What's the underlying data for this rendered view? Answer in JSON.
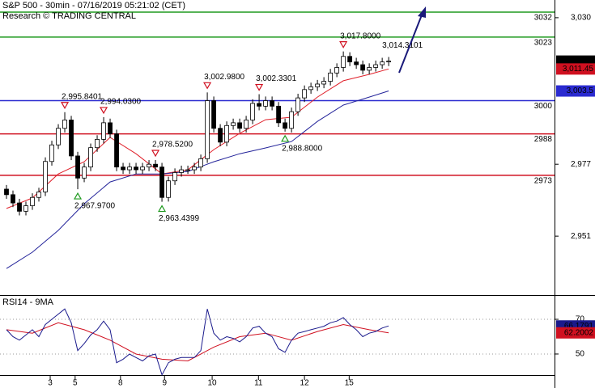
{
  "chart_data": {
    "type": "candlestick",
    "title": "S&P 500 - 30min - 07/16/2019 05:21:02 (CET)",
    "subtitle": "Research © TRADING CENTRAL",
    "x": [
      0,
      1,
      2,
      3,
      4,
      5,
      6,
      7,
      8,
      9,
      10,
      11,
      12,
      13,
      14,
      15,
      16,
      17,
      18,
      19,
      20,
      21,
      22,
      23,
      24,
      25,
      26,
      27,
      28,
      29,
      30,
      31,
      32,
      33,
      34,
      35,
      36,
      37,
      38,
      39,
      40,
      41,
      42,
      43,
      44,
      45,
      46,
      47,
      48,
      49,
      50,
      51,
      52,
      53,
      54,
      55,
      56,
      57,
      58,
      59
    ],
    "open": [
      2968,
      2966,
      2963,
      2960,
      2962,
      2965,
      2967,
      2978,
      2984,
      2990,
      2993,
      2980,
      2972,
      2976,
      2983,
      2986,
      2992,
      2988,
      2976,
      2975,
      2976,
      2975,
      2976,
      2977,
      2976,
      2965,
      2971,
      2974,
      2975,
      2975,
      2976,
      2979,
      3000,
      2990,
      2985,
      2991,
      2992,
      2990,
      2993,
      2999,
      2998,
      3000,
      2998,
      2992,
      2990,
      2996,
      3001,
      3004,
      3005,
      3006,
      3007,
      3010,
      3012,
      3016,
      3014,
      3013,
      3011,
      3012,
      3013,
      3014
    ],
    "high": [
      2969.5,
      2967.5,
      2964.5,
      2963.5,
      2966.5,
      2968.5,
      2979.5,
      2985.5,
      2991.5,
      2995.84,
      2994.5,
      2981.5,
      2977.5,
      2984.5,
      2987.5,
      2994.03,
      2993.5,
      2989.5,
      2977.5,
      2977.5,
      2977.5,
      2977.5,
      2978.5,
      2978.52,
      2977.5,
      2972.5,
      2975.5,
      2976.5,
      2976.5,
      2977.5,
      2980.5,
      3002.98,
      3001.5,
      2991.5,
      2992.5,
      2993.5,
      2993.5,
      2994.5,
      3000.5,
      3002.33,
      3001.5,
      3001.5,
      2999.5,
      2993.5,
      2997.5,
      3002.5,
      3005.5,
      3006.5,
      3007.5,
      3008.5,
      3011.5,
      3013.5,
      3017.8,
      3017.5,
      3015.5,
      3014.5,
      3013.5,
      3014.5,
      3015.5,
      3015.8
    ],
    "low": [
      2964.5,
      2961.5,
      2958.5,
      2958.5,
      2960.5,
      2963.5,
      2965.5,
      2976.5,
      2982.5,
      2988.5,
      2978.5,
      2967.97,
      2970.5,
      2974.5,
      2981.5,
      2984.5,
      2986.5,
      2974.5,
      2973.5,
      2973.5,
      2973.5,
      2973.5,
      2974.5,
      2974.5,
      2963.44,
      2963.5,
      2969.5,
      2972.5,
      2973.5,
      2973.5,
      2974.5,
      2977.5,
      2988.5,
      2983.5,
      2983.5,
      2989.5,
      2988.5,
      2988.5,
      2991.5,
      2996.5,
      2996.5,
      2996.5,
      2990.5,
      2988.8,
      2988.5,
      2994.5,
      2999.5,
      3002.5,
      3003.5,
      3004.5,
      3005.5,
      3008.5,
      3010.5,
      3012.5,
      3011.5,
      3009.5,
      3009.5,
      3010.5,
      3011.5,
      3012.5
    ],
    "close": [
      2966,
      2963,
      2960,
      2962,
      2965,
      2967,
      2978,
      2984,
      2990,
      2993,
      2980,
      2972,
      2976,
      2983,
      2986,
      2992,
      2988,
      2976,
      2975,
      2976,
      2975,
      2976,
      2977,
      2976,
      2965,
      2971,
      2974,
      2975,
      2975,
      2976,
      2979,
      3000,
      2990,
      2985,
      2991,
      2992,
      2990,
      2993,
      2999,
      2998,
      3000,
      2998,
      2992,
      2990,
      2996,
      3001,
      3004,
      3005,
      3006,
      3007,
      3010,
      3012,
      3016,
      3014,
      3013,
      3011,
      3012,
      3013,
      3014,
      3014.3
    ],
    "up_color": "#ffffff",
    "down_color": "#000000",
    "xlim": [
      -1,
      84.6
    ],
    "xticks": [
      {
        "value": 6.75,
        "label": "3"
      },
      {
        "value": 10.6,
        "label": "5"
      },
      {
        "value": 17.6,
        "label": "8"
      },
      {
        "value": 24.4,
        "label": "9"
      },
      {
        "value": 31.75,
        "label": "10"
      },
      {
        "value": 38.9,
        "label": "11"
      },
      {
        "value": 46,
        "label": "12"
      },
      {
        "value": 52.9,
        "label": "15"
      }
    ],
    "ylim": [
      2929.7,
      3036.4
    ],
    "yticks": [
      {
        "value": 3030,
        "label": "3,030"
      },
      {
        "value": 2977,
        "label": "2,977"
      },
      {
        "value": 2951,
        "label": "2,951"
      }
    ],
    "levels": [
      {
        "value": 3032,
        "color": "#1f9a1f"
      },
      {
        "value": 3023,
        "color": "#1f9a1f"
      },
      {
        "value": 3000,
        "color": "#2a2ad0"
      },
      {
        "value": 2988,
        "color": "#d01020"
      },
      {
        "value": 2973,
        "color": "#d01020"
      }
    ],
    "moving_averages": [
      {
        "color": "#e0202a",
        "x": [
          0,
          4,
          8,
          12,
          16,
          20,
          24,
          28,
          32,
          36,
          40,
          44,
          48,
          52,
          56,
          59
        ],
        "values": [
          2961,
          2964.8,
          2973.5,
          2977.9,
          2986.7,
          2980.8,
          2973.5,
          2975,
          2982.3,
          2988.2,
          2993.1,
          2994,
          3001.3,
          3007.2,
          3009.5,
          3011.45
        ]
      },
      {
        "color": "#23239a",
        "x": [
          0,
          4,
          8,
          12,
          16,
          20,
          24,
          28,
          32,
          36,
          40,
          44,
          48,
          52,
          56,
          59
        ],
        "values": [
          2939.3,
          2945.2,
          2953.1,
          2962.7,
          2970.6,
          2973.5,
          2973.5,
          2974.4,
          2977.9,
          2980.8,
          2982.9,
          2985.2,
          2992.5,
          2998.4,
          3001.3,
          3003.5
        ]
      }
    ],
    "price_tags": [
      {
        "value": 3014.3,
        "label": "3,014.3",
        "color": "#000000"
      },
      {
        "value": 3011.45,
        "label": "3,011.45",
        "color": "#d01020"
      },
      {
        "value": 3003.5,
        "label": "3,003.5",
        "color": "#2a2ad0"
      }
    ],
    "highs": [
      {
        "x": 9,
        "value": 2995.8401,
        "label": "2,995.8401"
      },
      {
        "x": 15,
        "value": 2994.03,
        "label": "2,994.0300"
      },
      {
        "x": 23,
        "value": 2978.52,
        "label": "2,978.5200"
      },
      {
        "x": 31,
        "value": 3002.98,
        "label": "3,002.9800"
      },
      {
        "x": 39,
        "value": 3002.3301,
        "label": "3,002.3301"
      },
      {
        "x": 52,
        "value": 3017.8,
        "label": "3,017.8000"
      }
    ],
    "lows": [
      {
        "x": 11,
        "value": 2967.97,
        "label": "2,967.9700"
      },
      {
        "x": 24,
        "value": 2963.4399,
        "label": "2,963.4399"
      },
      {
        "x": 43,
        "value": 2988.8,
        "label": "2,988.8000"
      }
    ],
    "annotations": [
      {
        "x": 59,
        "value": 3014.3101,
        "label": "3,014.3101"
      }
    ],
    "indicator": {
      "type": "line",
      "title": "RSI14 - 9MA",
      "color": "#1a1a8c",
      "x": [
        0,
        1,
        2,
        3,
        4,
        5,
        6,
        7,
        8,
        9,
        10,
        11,
        12,
        13,
        14,
        15,
        16,
        17,
        18,
        19,
        20,
        21,
        22,
        23,
        24,
        25,
        26,
        27,
        28,
        29,
        30,
        31,
        32,
        33,
        34,
        35,
        36,
        37,
        38,
        39,
        40,
        41,
        42,
        43,
        44,
        45,
        46,
        47,
        48,
        49,
        50,
        51,
        52,
        53,
        54,
        55,
        56,
        57,
        58,
        59
      ],
      "values": [
        64,
        60,
        58,
        61,
        64,
        60,
        67,
        70,
        73,
        76,
        68,
        52,
        56,
        61,
        64,
        69,
        64,
        45,
        47,
        50,
        48,
        46,
        49,
        50,
        38,
        45,
        47,
        48,
        48,
        48,
        52,
        76,
        62,
        58,
        60,
        59,
        57,
        60,
        65,
        66,
        62,
        60,
        53,
        51,
        58,
        62,
        63,
        64,
        65,
        66,
        68,
        69,
        71,
        67,
        64,
        60,
        62,
        63,
        65,
        66.1791
      ],
      "ma": {
        "color": "#d01020",
        "x": [
          0,
          4,
          8,
          12,
          16,
          20,
          24,
          28,
          32,
          36,
          40,
          44,
          48,
          52,
          56,
          59
        ],
        "values": [
          64,
          62,
          68,
          64,
          58,
          50,
          47,
          46,
          54,
          60,
          62,
          58,
          63,
          67,
          64,
          62.2002
        ]
      },
      "ylim": [
        38.8,
        82.6
      ],
      "yticks": [
        70,
        50
      ],
      "grid": true
    }
  }
}
